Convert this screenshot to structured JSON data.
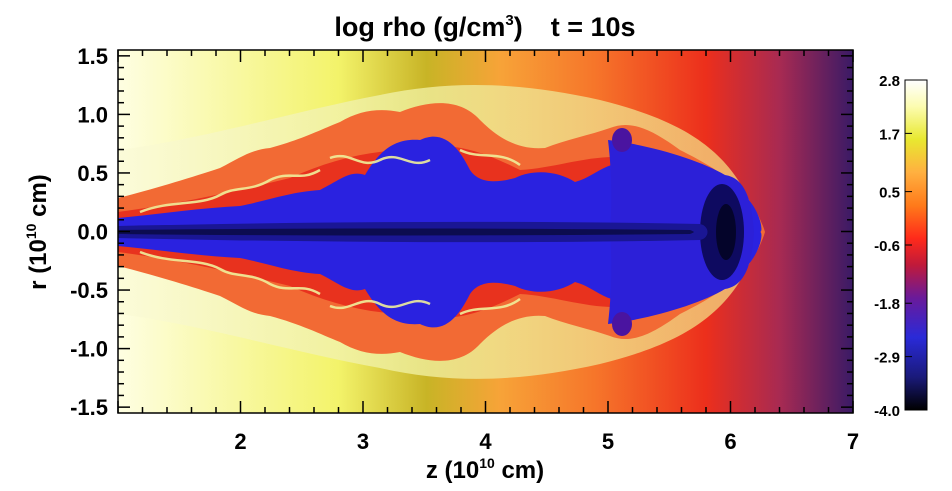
{
  "chart_data": {
    "type": "heatmap",
    "title": {
      "prefix": "log rho (g/cm",
      "superscript": "3",
      "suffix": ")",
      "time": "t = 10s"
    },
    "xlabel": {
      "prefix": "z (10",
      "superscript": "10",
      "suffix": " cm)"
    },
    "ylabel": {
      "prefix": "r (10",
      "superscript": "10",
      "suffix": " cm)"
    },
    "xlim": [
      1.0,
      7.0
    ],
    "ylim": [
      -1.55,
      1.55
    ],
    "x_ticks": [
      "2",
      "3",
      "4",
      "5",
      "6",
      "7"
    ],
    "x_tick_values": [
      2,
      3,
      4,
      5,
      6,
      7
    ],
    "y_ticks": [
      "1.5",
      "1.0",
      "0.5",
      "0.0",
      "-0.5",
      "-1.0",
      "-1.5"
    ],
    "y_tick_values": [
      1.5,
      1.0,
      0.5,
      0.0,
      -0.5,
      -1.0,
      -1.5
    ],
    "colorbar": {
      "range": [
        -4.0,
        2.8
      ],
      "tick_labels": [
        "2.8",
        "1.7",
        "0.5",
        "-0.6",
        "-1.8",
        "-2.9",
        "-4.0"
      ],
      "tick_values": [
        2.8,
        1.7,
        0.5,
        -0.6,
        -1.8,
        -2.9,
        -4.0
      ],
      "colormap": [
        "#000000",
        "#1a1a7a",
        "#2a2ad8",
        "#6a1a9a",
        "#c01a3a",
        "#ff2a1a",
        "#ff7a1a",
        "#ffb040",
        "#e8e830",
        "#fcfcb0",
        "#ffffff"
      ]
    },
    "colors": {
      "jet_core": "#2a22e0",
      "cocoon": "#f26a30",
      "shell": "#e8e890",
      "ambient_inner": "#f8f8c0",
      "ambient_outer": "#5a2a70"
    }
  }
}
